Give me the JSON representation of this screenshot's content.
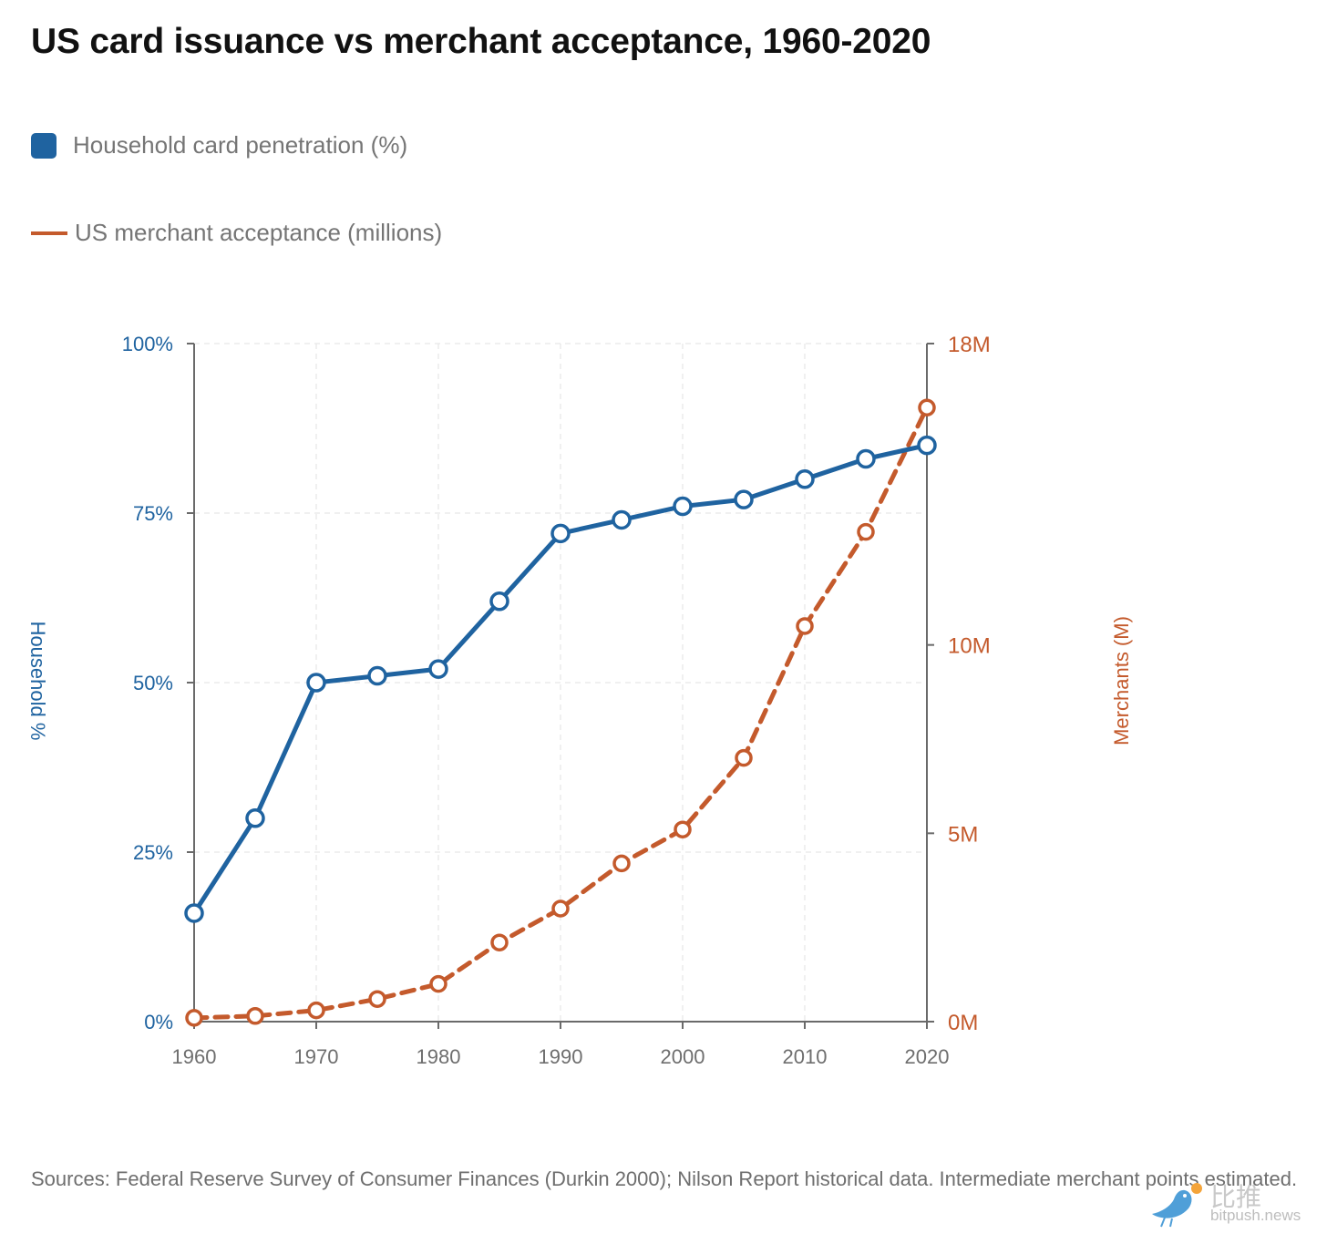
{
  "chart_data": {
    "type": "line",
    "title": "US card issuance vs merchant acceptance, 1960-2020",
    "x": [
      1960,
      1965,
      1970,
      1975,
      1980,
      1985,
      1990,
      1995,
      2000,
      2005,
      2010,
      2015,
      2020
    ],
    "x_ticks": [
      1960,
      1970,
      1980,
      1990,
      2000,
      2010,
      2020
    ],
    "x_tick_labels": [
      "1960",
      "1970",
      "1980",
      "1990",
      "2000",
      "2010",
      "2020"
    ],
    "xlim": [
      1960,
      2020
    ],
    "series": [
      {
        "name": "Household card penetration (%)",
        "axis": "left",
        "color": "#1f63a0",
        "style": "solid",
        "values": [
          16,
          30,
          50,
          51,
          52,
          62,
          72,
          74,
          76,
          77,
          80,
          83,
          85
        ]
      },
      {
        "name": "US merchant acceptance (millions)",
        "axis": "right",
        "color": "#c45a2c",
        "style": "dashed",
        "values": [
          0.1,
          0.15,
          0.3,
          0.6,
          1.0,
          2.1,
          3.0,
          4.2,
          5.1,
          7.0,
          10.5,
          13.0,
          16.3
        ]
      }
    ],
    "y_left": {
      "label": "Household %",
      "ylim": [
        0,
        100
      ],
      "ticks": [
        0,
        25,
        50,
        75,
        100
      ],
      "tick_labels": [
        "0%",
        "25%",
        "50%",
        "75%",
        "100%"
      ],
      "color": "#1f63a0"
    },
    "y_right": {
      "label": "Merchants (M)",
      "ylim": [
        0,
        18
      ],
      "ticks": [
        0,
        5,
        10,
        18
      ],
      "tick_labels": [
        "0M",
        "5M",
        "10M",
        "18M"
      ],
      "color": "#c45a2c"
    },
    "grid": true,
    "legend_placement": "top-left"
  },
  "legend": {
    "items": [
      {
        "label": "Household card penetration (%)",
        "color": "#1f63a0",
        "icon": "square-swatch"
      },
      {
        "label": "US merchant acceptance (millions)",
        "color": "#c45a2c",
        "icon": "line-swatch"
      }
    ]
  },
  "footer": {
    "source": "Sources: Federal Reserve Survey of Consumer Finances (Durkin 2000); Nilson Report historical data. Intermediate merchant points estimated."
  },
  "watermark": {
    "brand_cn": "比推",
    "url": "bitpush.news",
    "icon": "bird-logo-icon"
  }
}
